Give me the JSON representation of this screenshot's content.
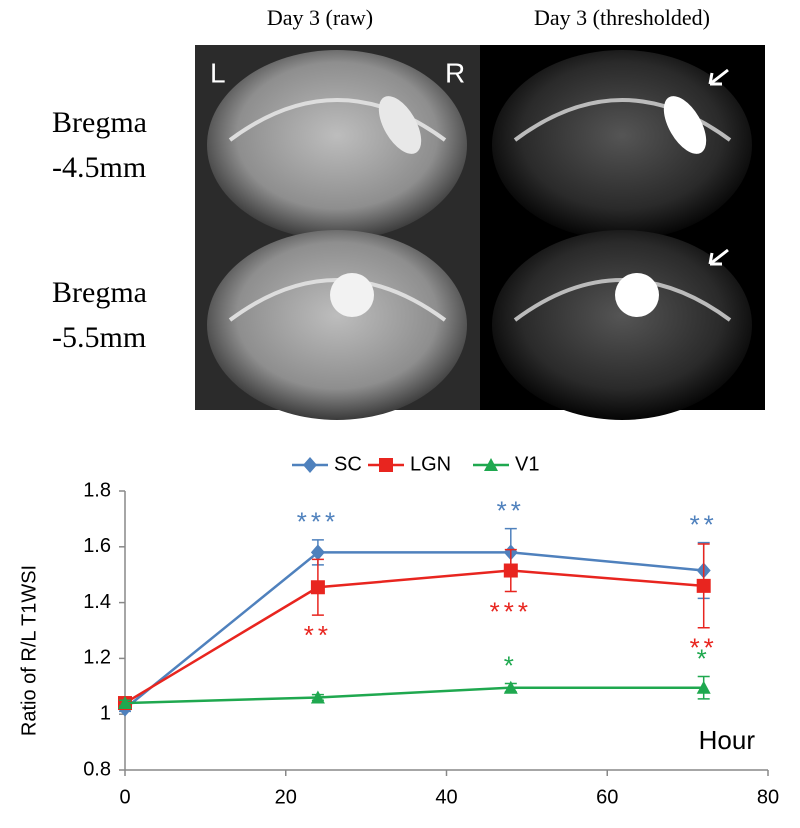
{
  "image_panel": {
    "columns": [
      "Day 3 (raw)",
      "Day 3 (thresholded)"
    ],
    "rows": [
      [
        "Bregma",
        "-4.5mm"
      ],
      [
        "Bregma",
        "-5.5mm"
      ]
    ],
    "side_labels": [
      "L",
      "R"
    ]
  },
  "chart_data": {
    "type": "line",
    "x_label": "Hour",
    "y_label": "Ratio of R/L T1WSI",
    "x": [
      0,
      24,
      48,
      72
    ],
    "xlim": [
      0,
      80
    ],
    "xticks": [
      0,
      20,
      40,
      60,
      80
    ],
    "ylim": [
      0.8,
      1.8
    ],
    "yticks": [
      0.8,
      1,
      1.2,
      1.4,
      1.6,
      1.8
    ],
    "legend": "top",
    "series": [
      {
        "name": "SC",
        "color": "#4f81bd",
        "marker": "diamond",
        "values": [
          1.02,
          1.58,
          1.58,
          1.515
        ],
        "errors": [
          0.01,
          0.045,
          0.085,
          0.1
        ],
        "stars": [
          null,
          "***",
          "**",
          "**"
        ]
      },
      {
        "name": "LGN",
        "color": "#e8251f",
        "marker": "square",
        "values": [
          1.04,
          1.455,
          1.515,
          1.46
        ],
        "errors": [
          0.01,
          0.1,
          0.075,
          0.15
        ],
        "stars": [
          null,
          "**",
          "***",
          "**"
        ]
      },
      {
        "name": "V1",
        "color": "#1fa84f",
        "marker": "triangle",
        "values": [
          1.04,
          1.06,
          1.095,
          1.095
        ],
        "errors": [
          0.01,
          0.01,
          0.015,
          0.04
        ],
        "stars": [
          null,
          null,
          "*",
          "*"
        ]
      }
    ]
  }
}
